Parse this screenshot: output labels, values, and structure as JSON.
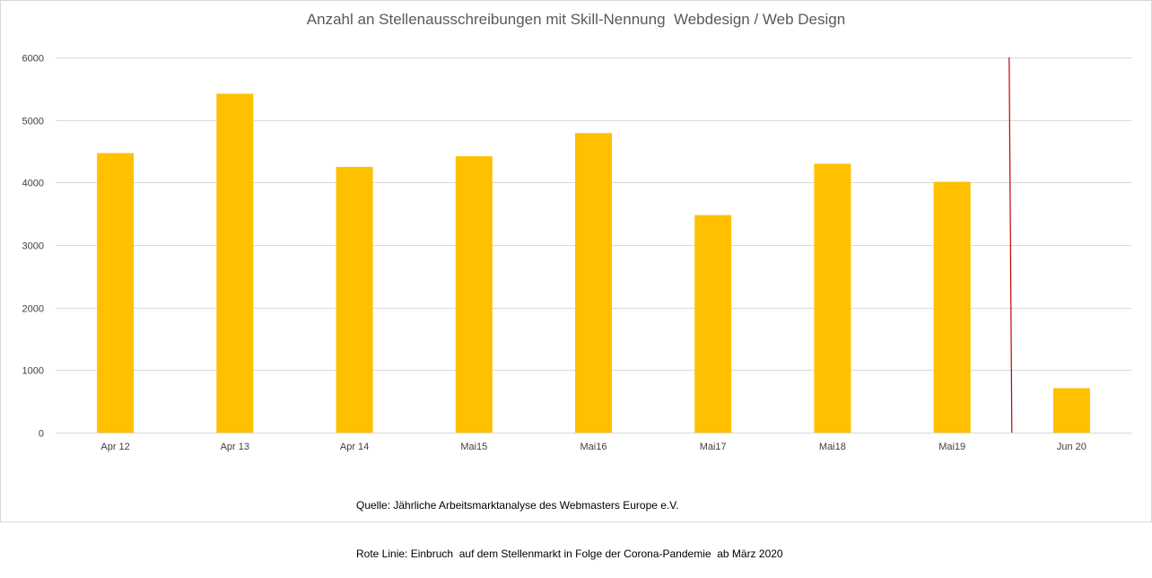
{
  "chart_data": {
    "type": "bar",
    "title": "Anzahl an Stellenausschreibungen mit Skill-Nennung  Webdesign / Web Design",
    "xlabel": "",
    "ylabel": "",
    "categories": [
      "Apr 12",
      "Apr 13",
      "Apr 14",
      "Mai15",
      "Mai16",
      "Mai17",
      "Mai18",
      "Mai19",
      "Jun 20"
    ],
    "values": [
      4470,
      5420,
      4250,
      4420,
      4790,
      3480,
      4300,
      4010,
      710
    ],
    "ylim": [
      0,
      6000
    ],
    "yticks": [
      0,
      1000,
      2000,
      3000,
      4000,
      5000,
      6000
    ],
    "grid": true,
    "legend": "none",
    "bar_color": "#ffc000",
    "grid_color": "#d9d9d9",
    "reference_line": {
      "color": "#c00000",
      "between_categories": [
        "Mai19",
        "Jun 20"
      ]
    }
  },
  "notes": {
    "source": "Quelle: Jährliche Arbeitsmarktanalyse des Webmasters Europe e.V.",
    "red_line": "Rote Linie: Einbruch  auf dem Stellenmarkt in Folge der Corona-Pandemie  ab März 2020"
  }
}
